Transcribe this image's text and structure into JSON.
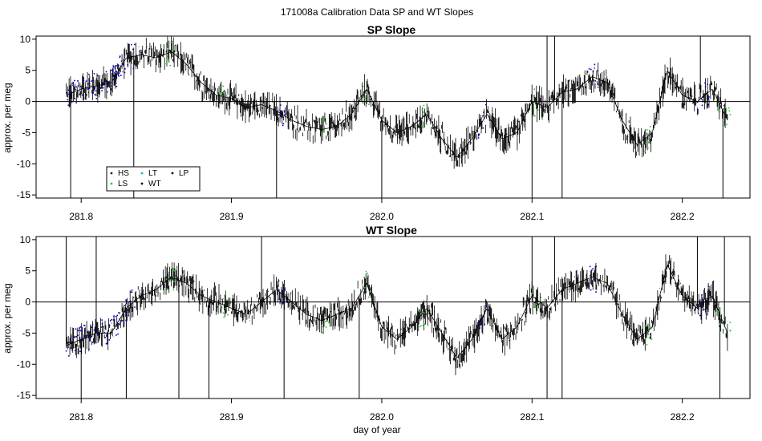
{
  "figure": {
    "title": "171008a   Calibration Data SP and WT Slopes",
    "xlabel": "day of year"
  },
  "chart_data": [
    {
      "type": "line",
      "title": "SP Slope",
      "ylabel": "approx. per meg",
      "xlim": [
        281.77,
        282.245
      ],
      "ylim": [
        -15.5,
        10.5
      ],
      "xticks": [
        281.8,
        281.9,
        282.0,
        282.1,
        282.2
      ],
      "xtick_labels": [
        "281.8",
        "281.9",
        "282.0",
        "282.1",
        "282.2"
      ],
      "yticks": [
        -15,
        -10,
        -5,
        0,
        5,
        10
      ],
      "ytick_labels": [
        "-15",
        "-10",
        "-5",
        "0",
        "5",
        "10"
      ],
      "hline": 0,
      "grid": false,
      "legend_position": "bottom-left",
      "legend": [
        {
          "label": "HS",
          "color": "#222222"
        },
        {
          "label": "LT",
          "color": "#00c0c0"
        },
        {
          "label": "LP",
          "color": "#000000"
        },
        {
          "label": "LS",
          "color": "#22cc22"
        },
        {
          "label": "WT",
          "color": "#000000"
        }
      ],
      "trend": {
        "x": [
          281.79,
          281.8,
          281.81,
          281.82,
          281.83,
          281.84,
          281.85,
          281.86,
          281.87,
          281.88,
          281.89,
          281.9,
          281.91,
          281.92,
          281.93,
          281.94,
          281.95,
          281.96,
          281.97,
          281.98,
          281.99,
          282.0,
          282.01,
          282.02,
          282.03,
          282.04,
          282.05,
          282.06,
          282.07,
          282.08,
          282.09,
          282.1,
          282.11,
          282.12,
          282.13,
          282.14,
          282.15,
          282.16,
          282.17,
          282.18,
          282.19,
          282.2,
          282.21,
          282.22,
          282.23
        ],
        "y": [
          1,
          2,
          2.5,
          3,
          7,
          7.5,
          7,
          8,
          6,
          3,
          1,
          0.5,
          -1,
          -0.5,
          -1.5,
          -3,
          -4,
          -4.5,
          -4,
          -2,
          2,
          -3,
          -5,
          -4,
          -2,
          -6,
          -9,
          -6,
          -2,
          -6,
          -5,
          0,
          -1,
          1.5,
          2,
          4,
          3,
          -3,
          -7,
          -5,
          5,
          1,
          0,
          2,
          -3
        ],
        "noise": 1.8
      },
      "spikes": [
        {
          "x": 281.793,
          "y": -15.5
        },
        {
          "x": 281.835,
          "y": -15.5
        },
        {
          "x": 281.93,
          "y": -15.5
        },
        {
          "x": 282.0,
          "y": -15.5
        },
        {
          "x": 282.1,
          "y": -15.5
        },
        {
          "x": 282.11,
          "y": 10.5
        },
        {
          "x": 282.115,
          "y": 10.5
        },
        {
          "x": 282.12,
          "y": -15.5
        },
        {
          "x": 282.212,
          "y": 10.5
        },
        {
          "x": 282.227,
          "y": -15.5
        }
      ],
      "calibration_segments": [
        {
          "from": 281.79,
          "to": 281.826,
          "color": "#0000cc"
        },
        {
          "from": 281.82,
          "to": 281.836,
          "color": "#0000cc"
        },
        {
          "from": 281.855,
          "to": 281.862,
          "color": "#22cc22"
        },
        {
          "from": 281.893,
          "to": 281.898,
          "color": "#22cc22"
        },
        {
          "from": 281.93,
          "to": 281.937,
          "color": "#0000cc"
        },
        {
          "from": 281.96,
          "to": 281.966,
          "color": "#22cc22"
        },
        {
          "from": 281.987,
          "to": 281.992,
          "color": "#22cc22"
        },
        {
          "from": 282.025,
          "to": 282.03,
          "color": "#22cc22"
        },
        {
          "from": 282.064,
          "to": 282.07,
          "color": "#0000cc"
        },
        {
          "from": 282.1,
          "to": 282.106,
          "color": "#22cc22"
        },
        {
          "from": 282.138,
          "to": 282.144,
          "color": "#0000cc"
        },
        {
          "from": 282.175,
          "to": 282.18,
          "color": "#22cc22"
        },
        {
          "from": 282.21,
          "to": 282.218,
          "color": "#0000cc"
        },
        {
          "from": 282.224,
          "to": 282.232,
          "color": "#22cc22"
        }
      ]
    },
    {
      "type": "line",
      "title": "WT Slope",
      "ylabel": "approx. per meg",
      "xlabel": "day of year",
      "xlim": [
        281.77,
        282.245
      ],
      "ylim": [
        -15.5,
        10.5
      ],
      "xticks": [
        281.8,
        281.9,
        282.0,
        282.1,
        282.2
      ],
      "xtick_labels": [
        "281.8",
        "281.9",
        "282.0",
        "282.1",
        "282.2"
      ],
      "yticks": [
        -15,
        -10,
        -5,
        0,
        5,
        10
      ],
      "ytick_labels": [
        "-15",
        "-10",
        "-5",
        "0",
        "5",
        "10"
      ],
      "hline": 0,
      "grid": false,
      "trend": {
        "x": [
          281.79,
          281.8,
          281.81,
          281.82,
          281.83,
          281.84,
          281.85,
          281.86,
          281.87,
          281.88,
          281.89,
          281.9,
          281.91,
          281.92,
          281.93,
          281.94,
          281.95,
          281.96,
          281.97,
          281.98,
          281.99,
          282.0,
          282.01,
          282.02,
          282.03,
          282.04,
          282.05,
          282.06,
          282.07,
          282.08,
          282.09,
          282.1,
          282.11,
          282.12,
          282.13,
          282.14,
          282.15,
          282.16,
          282.17,
          282.18,
          282.19,
          282.2,
          282.21,
          282.22,
          282.23
        ],
        "y": [
          -7,
          -6,
          -5,
          -5,
          -1,
          1,
          2,
          4,
          3,
          1,
          0,
          -1,
          -2,
          0,
          2,
          0,
          -2,
          -3,
          -2,
          -1,
          3,
          -4,
          -6,
          -4,
          -1,
          -5,
          -9,
          -6,
          -1,
          -6,
          -4,
          1,
          -1,
          2,
          3,
          4,
          3,
          -2,
          -6,
          -4,
          6,
          1,
          -1,
          1,
          -5
        ],
        "noise": 1.8
      },
      "spikes": [
        {
          "x": 281.79,
          "y": 10.5
        },
        {
          "x": 281.8,
          "y": -15.5
        },
        {
          "x": 281.81,
          "y": 10.5
        },
        {
          "x": 281.83,
          "y": -15.5
        },
        {
          "x": 281.865,
          "y": -15.5
        },
        {
          "x": 281.885,
          "y": -15.5
        },
        {
          "x": 281.92,
          "y": 10.5
        },
        {
          "x": 281.935,
          "y": -15.5
        },
        {
          "x": 281.985,
          "y": -15.5
        },
        {
          "x": 282.1,
          "y": 10.5
        },
        {
          "x": 282.11,
          "y": -15.5
        },
        {
          "x": 282.115,
          "y": 10.5
        },
        {
          "x": 282.12,
          "y": -15.5
        },
        {
          "x": 282.21,
          "y": 10.5
        },
        {
          "x": 282.225,
          "y": -15.5
        },
        {
          "x": 282.228,
          "y": 10.5
        }
      ],
      "calibration_segments": [
        {
          "from": 281.79,
          "to": 281.826,
          "color": "#0000cc"
        },
        {
          "from": 281.82,
          "to": 281.836,
          "color": "#0000cc"
        },
        {
          "from": 281.855,
          "to": 281.862,
          "color": "#22cc22"
        },
        {
          "from": 281.893,
          "to": 281.898,
          "color": "#22cc22"
        },
        {
          "from": 281.93,
          "to": 281.937,
          "color": "#0000cc"
        },
        {
          "from": 281.96,
          "to": 281.966,
          "color": "#22cc22"
        },
        {
          "from": 281.987,
          "to": 281.992,
          "color": "#22cc22"
        },
        {
          "from": 282.025,
          "to": 282.03,
          "color": "#22cc22"
        },
        {
          "from": 282.064,
          "to": 282.07,
          "color": "#0000cc"
        },
        {
          "from": 282.1,
          "to": 282.106,
          "color": "#22cc22"
        },
        {
          "from": 282.138,
          "to": 282.144,
          "color": "#0000cc"
        },
        {
          "from": 282.175,
          "to": 282.18,
          "color": "#22cc22"
        },
        {
          "from": 282.21,
          "to": 282.218,
          "color": "#0000cc"
        },
        {
          "from": 282.224,
          "to": 282.232,
          "color": "#22cc22"
        }
      ]
    }
  ]
}
